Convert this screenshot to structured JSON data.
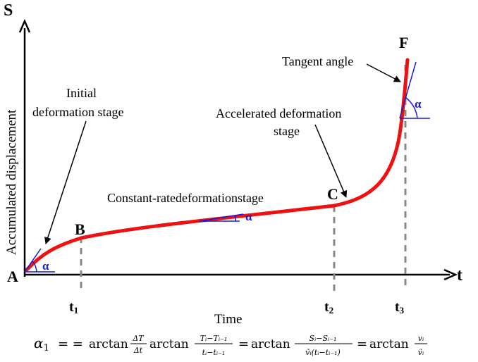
{
  "axes": {
    "y_label": "Accumulated displacement",
    "x_label": "Time",
    "y_symbol": "S",
    "x_symbol": "t"
  },
  "points": {
    "A": "A",
    "B": "B",
    "C": "C",
    "F": "F"
  },
  "ticks": [
    {
      "base": "t",
      "sub": "1"
    },
    {
      "base": "t",
      "sub": "2"
    },
    {
      "base": "t",
      "sub": "3"
    }
  ],
  "annotations": {
    "initial_line1": "Initial",
    "initial_line2": "deformation stage",
    "constant": "Constant-ratedeformationstage",
    "accelerated_line1": "Accelerated deformation",
    "accelerated_line2": "stage",
    "tangent": "Tangent angle"
  },
  "angle_symbol": "α",
  "formula": {
    "lhs": "α",
    "lhs_sub": "1",
    "eq": "= =",
    "arctan": "arctan",
    "f1_num": "ΔT",
    "f1_den": "Δt",
    "f2_num": "Tᵢ−Tᵢ₋₁",
    "f2_den": "tᵢ−tᵢ₋₁",
    "f3_num": "Sᵢ−Sᵢ₋₁",
    "f3_den": "ṽᵢ(tᵢ−tᵢ₋₁)",
    "f4_num": "vᵢ",
    "f4_den": "ṽᵢ"
  },
  "colors": {
    "curve": "#ee1111",
    "tangent": "#1a1adc",
    "dash": "#888888",
    "axis": "#000000"
  }
}
